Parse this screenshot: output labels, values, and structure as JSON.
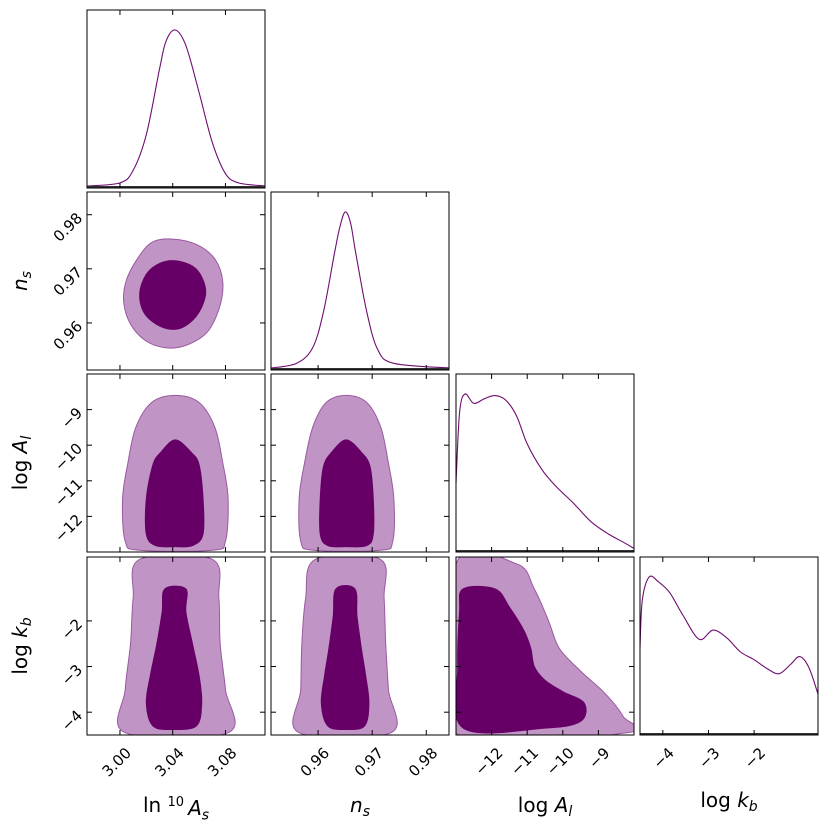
{
  "chart_data": {
    "type": "corner",
    "title": "",
    "colors": {
      "line": "#6f0d6f",
      "fill_inner": "#660066",
      "fill_outer": "#c094c4",
      "outer_stroke": "#9a5aa0"
    },
    "parameters": [
      {
        "id": "lnAs",
        "label_prefix": "ln 10",
        "label_sup": "10",
        "label_sym": "A",
        "label_sub": "s",
        "range": [
          2.975,
          3.11
        ],
        "ticks": [
          3.0,
          3.04,
          3.08
        ],
        "tick_labels": [
          "3.00",
          "3.04",
          "3.08"
        ]
      },
      {
        "id": "ns",
        "label_prefix": "",
        "label_sym": "n",
        "label_sub": "s",
        "range": [
          0.9513,
          0.9842
        ],
        "ticks": [
          0.96,
          0.97,
          0.98
        ],
        "tick_labels": [
          "0.96",
          "0.97",
          "0.98"
        ]
      },
      {
        "id": "logAl",
        "label_prefix": "log ",
        "label_sym": "A",
        "label_sub": "l",
        "range": [
          -13.0,
          -8.0
        ],
        "ticks": [
          -12,
          -11,
          -10,
          -9
        ],
        "tick_labels": [
          "−12",
          "−11",
          "−10",
          "−9"
        ]
      },
      {
        "id": "logkb",
        "label_prefix": "log ",
        "label_sym": "k",
        "label_sub": "b",
        "range": [
          -4.5,
          -0.6
        ],
        "ticks": [
          -4,
          -3,
          -2
        ],
        "tick_labels": [
          "−4",
          "−3",
          "−2"
        ]
      }
    ],
    "marginals": [
      {
        "param": "lnAs",
        "x": [
          2.975,
          3.0,
          3.01,
          3.02,
          3.03,
          3.035,
          3.042,
          3.05,
          3.06,
          3.07,
          3.08,
          3.09,
          3.11
        ],
        "density": [
          0.0,
          0.02,
          0.1,
          0.33,
          0.75,
          0.93,
          1.0,
          0.9,
          0.6,
          0.28,
          0.08,
          0.02,
          0.0
        ]
      },
      {
        "param": "ns",
        "x": [
          0.9513,
          0.956,
          0.959,
          0.961,
          0.963,
          0.964,
          0.965,
          0.966,
          0.967,
          0.969,
          0.971,
          0.974,
          0.9842
        ],
        "density": [
          0.0,
          0.03,
          0.13,
          0.36,
          0.73,
          0.9,
          1.0,
          0.93,
          0.73,
          0.36,
          0.12,
          0.03,
          0.0
        ]
      },
      {
        "param": "logAl",
        "x": [
          -13.0,
          -12.9,
          -12.75,
          -12.5,
          -12.2,
          -11.9,
          -11.6,
          -11.3,
          -11.0,
          -10.6,
          -10.2,
          -9.7,
          -9.2,
          -8.7,
          -8.3,
          -8.0
        ],
        "density": [
          0.43,
          0.88,
          1.0,
          0.94,
          0.97,
          0.99,
          0.96,
          0.86,
          0.68,
          0.52,
          0.41,
          0.3,
          0.18,
          0.1,
          0.05,
          0.01
        ]
      },
      {
        "param": "logkb",
        "x": [
          -4.5,
          -4.45,
          -4.3,
          -4.1,
          -3.85,
          -3.55,
          -3.2,
          -2.9,
          -2.6,
          -2.3,
          -2.0,
          -1.7,
          -1.45,
          -1.2,
          -1.0,
          -0.8,
          -0.6
        ],
        "density": [
          0.55,
          0.85,
          1.0,
          0.97,
          0.9,
          0.75,
          0.6,
          0.66,
          0.61,
          0.52,
          0.47,
          0.41,
          0.38,
          0.44,
          0.49,
          0.42,
          0.25
        ]
      }
    ],
    "joint": [
      {
        "x": "lnAs",
        "y": "ns",
        "inner": [
          [
            3.042,
            0.9715
          ],
          [
            3.055,
            0.9705
          ],
          [
            3.062,
            0.9685
          ],
          [
            3.065,
            0.9655
          ],
          [
            3.06,
            0.962
          ],
          [
            3.05,
            0.9595
          ],
          [
            3.04,
            0.9588
          ],
          [
            3.028,
            0.9597
          ],
          [
            3.018,
            0.962
          ],
          [
            3.015,
            0.9655
          ],
          [
            3.02,
            0.969
          ],
          [
            3.03,
            0.971
          ]
        ],
        "outer": [
          [
            3.04,
            0.9755
          ],
          [
            3.058,
            0.9745
          ],
          [
            3.072,
            0.9718
          ],
          [
            3.078,
            0.9675
          ],
          [
            3.075,
            0.9625
          ],
          [
            3.065,
            0.958
          ],
          [
            3.045,
            0.9555
          ],
          [
            3.025,
            0.956
          ],
          [
            3.01,
            0.959
          ],
          [
            3.003,
            0.9635
          ],
          [
            3.005,
            0.968
          ],
          [
            3.015,
            0.9725
          ],
          [
            3.025,
            0.975
          ]
        ]
      },
      {
        "x": "lnAs",
        "y": "logAl",
        "inner": [
          [
            3.042,
            -9.85
          ],
          [
            3.054,
            -10.2
          ],
          [
            3.06,
            -10.55
          ],
          [
            3.063,
            -11.5
          ],
          [
            3.063,
            -12.5
          ],
          [
            3.055,
            -12.82
          ],
          [
            3.042,
            -12.85
          ],
          [
            3.027,
            -12.82
          ],
          [
            3.02,
            -12.5
          ],
          [
            3.02,
            -11.5
          ],
          [
            3.025,
            -10.55
          ],
          [
            3.031,
            -10.2
          ]
        ],
        "outer": [
          [
            3.042,
            -8.6
          ],
          [
            3.06,
            -8.8
          ],
          [
            3.072,
            -9.5
          ],
          [
            3.078,
            -10.5
          ],
          [
            3.082,
            -11.5
          ],
          [
            3.08,
            -12.7
          ],
          [
            3.07,
            -12.95
          ],
          [
            3.015,
            -12.95
          ],
          [
            3.004,
            -12.7
          ],
          [
            3.002,
            -11.5
          ],
          [
            3.006,
            -10.5
          ],
          [
            3.012,
            -9.5
          ],
          [
            3.024,
            -8.8
          ]
        ]
      },
      {
        "x": "ns",
        "y": "logAl",
        "inner": [
          [
            0.9652,
            -9.85
          ],
          [
            0.968,
            -10.2
          ],
          [
            0.9696,
            -10.6
          ],
          [
            0.9702,
            -11.5
          ],
          [
            0.9702,
            -12.5
          ],
          [
            0.969,
            -12.82
          ],
          [
            0.9652,
            -12.85
          ],
          [
            0.9618,
            -12.82
          ],
          [
            0.9604,
            -12.5
          ],
          [
            0.9604,
            -11.5
          ],
          [
            0.961,
            -10.6
          ],
          [
            0.9625,
            -10.2
          ]
        ],
        "outer": [
          [
            0.9652,
            -8.6
          ],
          [
            0.969,
            -8.8
          ],
          [
            0.9716,
            -9.5
          ],
          [
            0.973,
            -10.5
          ],
          [
            0.974,
            -11.5
          ],
          [
            0.9738,
            -12.7
          ],
          [
            0.9715,
            -12.95
          ],
          [
            0.9592,
            -12.95
          ],
          [
            0.9568,
            -12.7
          ],
          [
            0.9565,
            -11.5
          ],
          [
            0.9575,
            -10.5
          ],
          [
            0.959,
            -9.5
          ],
          [
            0.9615,
            -8.8
          ]
        ]
      },
      {
        "x": "lnAs",
        "y": "logkb",
        "inner": [
          [
            3.034,
            -1.3
          ],
          [
            3.05,
            -1.3
          ],
          [
            3.05,
            -1.8
          ],
          [
            3.055,
            -2.5
          ],
          [
            3.06,
            -3.2
          ],
          [
            3.062,
            -3.8
          ],
          [
            3.058,
            -4.3
          ],
          [
            3.04,
            -4.38
          ],
          [
            3.025,
            -4.3
          ],
          [
            3.02,
            -3.8
          ],
          [
            3.023,
            -3.2
          ],
          [
            3.028,
            -2.5
          ],
          [
            3.032,
            -1.8
          ]
        ],
        "outer": [
          [
            3.015,
            -0.65
          ],
          [
            3.07,
            -0.65
          ],
          [
            3.075,
            -1.5
          ],
          [
            3.076,
            -2.5
          ],
          [
            3.08,
            -3.5
          ],
          [
            3.082,
            -4.45
          ],
          [
            3.004,
            -4.45
          ],
          [
            3.004,
            -3.5
          ],
          [
            3.008,
            -2.5
          ],
          [
            3.01,
            -1.5
          ]
        ]
      },
      {
        "x": "ns",
        "y": "logkb",
        "inner": [
          [
            0.9633,
            -1.3
          ],
          [
            0.9668,
            -1.3
          ],
          [
            0.9672,
            -1.9
          ],
          [
            0.968,
            -2.6
          ],
          [
            0.9688,
            -3.2
          ],
          [
            0.9694,
            -3.8
          ],
          [
            0.9686,
            -4.3
          ],
          [
            0.9652,
            -4.38
          ],
          [
            0.9618,
            -4.3
          ],
          [
            0.9606,
            -3.8
          ],
          [
            0.9612,
            -3.2
          ],
          [
            0.962,
            -2.6
          ],
          [
            0.9628,
            -1.9
          ]
        ],
        "outer": [
          [
            0.9595,
            -0.65
          ],
          [
            0.9715,
            -0.65
          ],
          [
            0.9722,
            -1.5
          ],
          [
            0.9725,
            -2.5
          ],
          [
            0.973,
            -3.5
          ],
          [
            0.9735,
            -4.45
          ],
          [
            0.9565,
            -4.45
          ],
          [
            0.9568,
            -3.5
          ],
          [
            0.957,
            -2.5
          ],
          [
            0.9577,
            -1.5
          ]
        ]
      },
      {
        "x": "logAl",
        "y": "logkb",
        "inner": [
          [
            -12.8,
            -1.3
          ],
          [
            -11.9,
            -1.3
          ],
          [
            -11.5,
            -1.7
          ],
          [
            -11.1,
            -2.2
          ],
          [
            -10.9,
            -2.6
          ],
          [
            -10.8,
            -3.0
          ],
          [
            -10.5,
            -3.3
          ],
          [
            -10.0,
            -3.55
          ],
          [
            -9.4,
            -3.8
          ],
          [
            -9.5,
            -4.2
          ],
          [
            -10.5,
            -4.35
          ],
          [
            -12.8,
            -4.35
          ],
          [
            -12.95,
            -3.0
          ],
          [
            -12.9,
            -1.8
          ]
        ],
        "outer": [
          [
            -13.0,
            -0.75
          ],
          [
            -11.3,
            -0.75
          ],
          [
            -10.8,
            -1.3
          ],
          [
            -10.4,
            -2.0
          ],
          [
            -10.1,
            -2.6
          ],
          [
            -9.5,
            -3.1
          ],
          [
            -8.8,
            -3.6
          ],
          [
            -8.3,
            -4.1
          ],
          [
            -8.2,
            -4.45
          ],
          [
            -13.0,
            -4.45
          ]
        ]
      }
    ]
  }
}
